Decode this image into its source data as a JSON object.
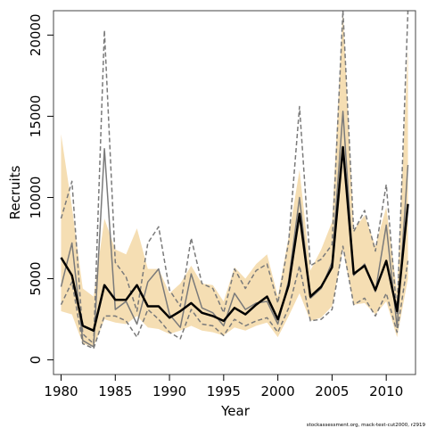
{
  "chart_data": {
    "type": "line",
    "xlabel": "Year",
    "ylabel": "Recruits",
    "xlim": [
      1979.3,
      2012.7
    ],
    "ylim": [
      -900,
      21500
    ],
    "x_ticks": [
      1980,
      1985,
      1990,
      1995,
      2000,
      2005,
      2010
    ],
    "y_ticks": [
      0,
      5000,
      10000,
      15000,
      20000
    ],
    "grid": false,
    "legend": "none",
    "colors": {
      "band": "#f5deb3",
      "main_line": "#000000",
      "outer_line": "#7a7a7a"
    },
    "x": [
      1980,
      1981,
      1982,
      1983,
      1984,
      1985,
      1986,
      1987,
      1988,
      1989,
      1990,
      1991,
      1992,
      1993,
      1994,
      1995,
      1996,
      1997,
      1998,
      1999,
      2000,
      2001,
      2002,
      2003,
      2004,
      2005,
      2006,
      2007,
      2008,
      2009,
      2010,
      2011,
      2012
    ],
    "series": [
      {
        "role": "band_upper",
        "values": [
          13900,
          9400,
          4400,
          3900,
          8700,
          6800,
          6500,
          8100,
          5600,
          5600,
          4100,
          4700,
          5800,
          4700,
          4600,
          3600,
          5700,
          5000,
          5900,
          6500,
          3900,
          7600,
          11700,
          5500,
          6800,
          8500,
          21500,
          8000,
          8900,
          7000,
          9400,
          4200,
          19200
        ]
      },
      {
        "role": "band_lower",
        "values": [
          3000,
          2800,
          1000,
          800,
          2500,
          2300,
          2200,
          2700,
          2000,
          1900,
          1600,
          1800,
          2100,
          1800,
          1700,
          1500,
          2000,
          1800,
          2100,
          2300,
          1400,
          2700,
          4100,
          2400,
          2600,
          3300,
          6800,
          3400,
          3500,
          2800,
          3600,
          1400,
          5000
        ]
      },
      {
        "role": "median",
        "values": [
          6300,
          5200,
          2100,
          1800,
          4600,
          3700,
          3700,
          4600,
          3300,
          3300,
          2600,
          3000,
          3500,
          2900,
          2700,
          2400,
          3200,
          2800,
          3400,
          3900,
          2500,
          4600,
          9000,
          3900,
          4500,
          5700,
          13100,
          5300,
          5800,
          4300,
          6100,
          3000,
          9600
        ]
      },
      {
        "role": "outer_lower_solid",
        "values": [
          4500,
          7200,
          1200,
          800,
          13000,
          3100,
          3600,
          2200,
          4800,
          5600,
          2800,
          2000,
          5300,
          3200,
          2900,
          2100,
          4100,
          3100,
          3500,
          3600,
          2200,
          4900,
          10000,
          3800,
          4400,
          6000,
          15300,
          5200,
          5900,
          4200,
          8300,
          2000,
          12000
        ]
      },
      {
        "role": "outer_dashed_lower",
        "values": [
          3400,
          4800,
          1000,
          700,
          2700,
          2700,
          2400,
          1400,
          3100,
          2500,
          1700,
          1300,
          3100,
          2200,
          2100,
          1500,
          2500,
          2100,
          2400,
          2600,
          1700,
          3200,
          5800,
          2400,
          2500,
          3100,
          7000,
          3400,
          3800,
          2700,
          4100,
          1700,
          6100
        ]
      },
      {
        "role": "outer_dashed_upper",
        "values": [
          8700,
          11000,
          1600,
          1000,
          20300,
          6000,
          5100,
          3000,
          7200,
          8200,
          4300,
          3300,
          7500,
          4700,
          4400,
          2900,
          5600,
          4400,
          5500,
          5900,
          3500,
          7300,
          15600,
          5800,
          6200,
          7100,
          21500,
          7900,
          9200,
          6700,
          10800,
          2800,
          21500
        ]
      }
    ]
  },
  "footnote": "stockassessment.org, mack-test-cut2000, r2919"
}
